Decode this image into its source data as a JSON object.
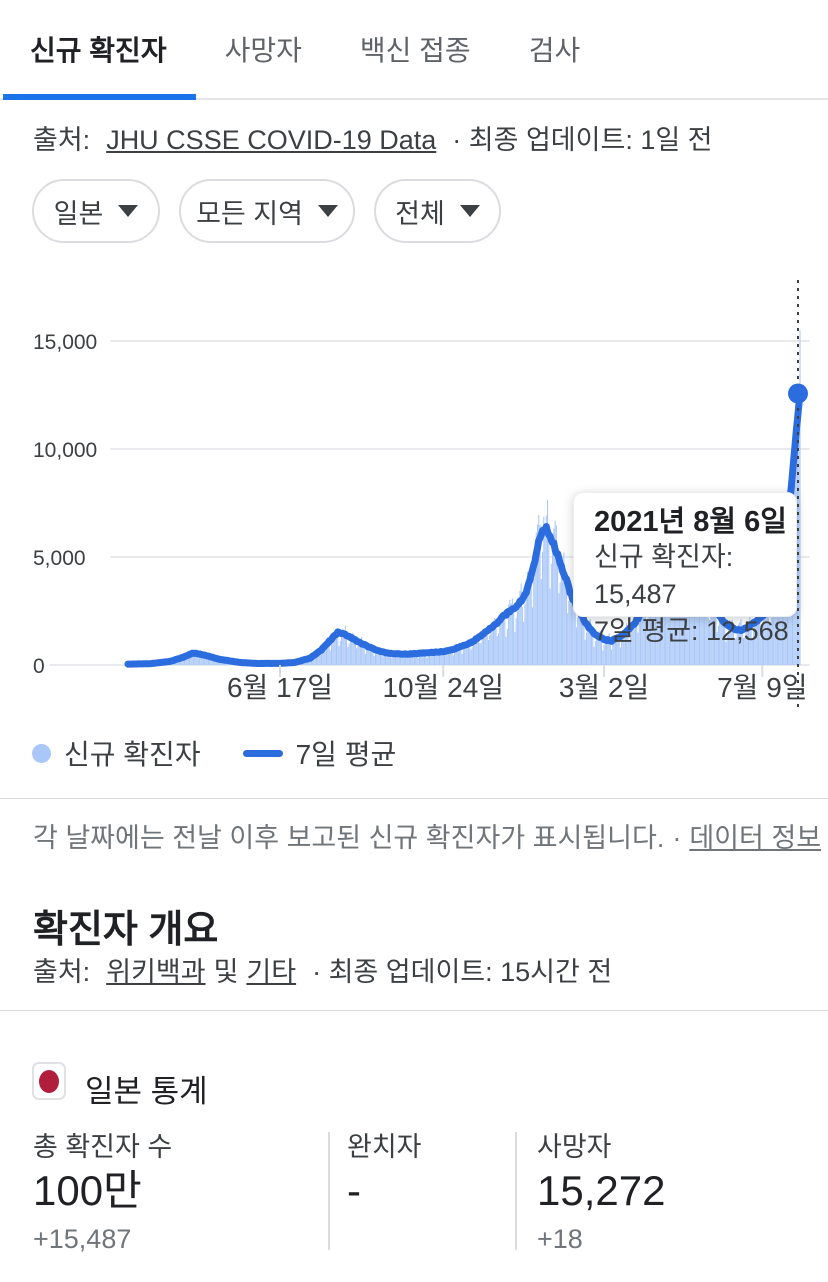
{
  "tabs": {
    "items": [
      {
        "label": "신규 확진자",
        "active": true
      },
      {
        "label": "사망자",
        "active": false
      },
      {
        "label": "백신 접종",
        "active": false
      },
      {
        "label": "검사",
        "active": false
      }
    ]
  },
  "source_line": {
    "prefix": "출처:",
    "link": "JHU CSSE COVID-19 Data",
    "suffix": "· 최종 업데이트: 1일 전"
  },
  "filters": [
    {
      "label": "일본"
    },
    {
      "label": "모든 지역"
    },
    {
      "label": "전체"
    }
  ],
  "chart_data": {
    "type": "area",
    "grid": "horizontal",
    "legend_position": "bottom",
    "x_axis": {
      "days_total": 535,
      "ticks": [
        {
          "day": 121,
          "label": "6월 17일"
        },
        {
          "day": 251,
          "label": "10월 24일"
        },
        {
          "day": 379,
          "label": "3월 2일"
        },
        {
          "day": 505,
          "label": "7월 9일"
        }
      ]
    },
    "y_axis": {
      "range": [
        0,
        17000
      ],
      "ticks": [
        {
          "value": 0,
          "label": "0"
        },
        {
          "value": 5000,
          "label": "5,000"
        },
        {
          "value": 10000,
          "label": "10,000"
        },
        {
          "value": 15000,
          "label": "15,000"
        }
      ]
    },
    "series": [
      {
        "name": "신규 확진자",
        "render": "bars",
        "color": "#a9c7f8",
        "latest": 15487,
        "note": "daily bars derived from 7-day average keypoints with weekly reporting dips and noise"
      },
      {
        "name": "7일 평균",
        "render": "line",
        "color": "#2b6cdf",
        "latest": 12568,
        "keypoints": [
          [
            0,
            40
          ],
          [
            17,
            60
          ],
          [
            33,
            160
          ],
          [
            45,
            380
          ],
          [
            52,
            560
          ],
          [
            61,
            460
          ],
          [
            73,
            260
          ],
          [
            89,
            120
          ],
          [
            103,
            70
          ],
          [
            121,
            75
          ],
          [
            133,
            120
          ],
          [
            145,
            320
          ],
          [
            154,
            700
          ],
          [
            161,
            1150
          ],
          [
            167,
            1500
          ],
          [
            173,
            1400
          ],
          [
            181,
            1150
          ],
          [
            191,
            850
          ],
          [
            201,
            620
          ],
          [
            210,
            530
          ],
          [
            220,
            500
          ],
          [
            232,
            540
          ],
          [
            251,
            620
          ],
          [
            260,
            750
          ],
          [
            271,
            980
          ],
          [
            280,
            1300
          ],
          [
            290,
            1750
          ],
          [
            298,
            2200
          ],
          [
            306,
            2600
          ],
          [
            310,
            2750
          ],
          [
            315,
            3100
          ],
          [
            320,
            3900
          ],
          [
            324,
            4900
          ],
          [
            328,
            5900
          ],
          [
            331,
            6400
          ],
          [
            334,
            6300
          ],
          [
            337,
            5900
          ],
          [
            342,
            5100
          ],
          [
            348,
            4100
          ],
          [
            353,
            3200
          ],
          [
            360,
            2400
          ],
          [
            366,
            1800
          ],
          [
            372,
            1400
          ],
          [
            379,
            1180
          ],
          [
            385,
            1120
          ],
          [
            392,
            1300
          ],
          [
            400,
            1700
          ],
          [
            408,
            2300
          ],
          [
            417,
            3400
          ],
          [
            425,
            4600
          ],
          [
            431,
            5600
          ],
          [
            437,
            6050
          ],
          [
            442,
            5700
          ],
          [
            449,
            4800
          ],
          [
            457,
            3700
          ],
          [
            465,
            2800
          ],
          [
            473,
            2100
          ],
          [
            479,
            1750
          ],
          [
            486,
            1600
          ],
          [
            492,
            1700
          ],
          [
            498,
            1950
          ],
          [
            505,
            2250
          ],
          [
            511,
            2800
          ],
          [
            517,
            3900
          ],
          [
            523,
            5800
          ],
          [
            528,
            8200
          ],
          [
            532,
            10800
          ],
          [
            535,
            12568
          ]
        ]
      }
    ],
    "highlight": {
      "day": 535,
      "date": "2021년 8월 6일",
      "new_cases": 15487,
      "avg_7day": 12568
    }
  },
  "tooltip": {
    "title": "2021년 8월 6일",
    "line1": "신규 확진자: 15,487",
    "line2": "7일 평균: 12,568"
  },
  "legend": {
    "items": [
      {
        "label": "신규 확진자"
      },
      {
        "label": "7일 평균"
      }
    ]
  },
  "note": {
    "text": "각 날짜에는 전날 이후 보고된 신규 확진자가 표시됩니다.",
    "separator": "·",
    "link": "데이터 정보"
  },
  "overview": {
    "heading": "확진자 개요",
    "source_prefix": "출처:",
    "source_link1": "위키백과",
    "source_mid": "및",
    "source_link2": "기타",
    "source_suffix": "· 최종 업데이트: 15시간 전"
  },
  "stats": {
    "title": "일본 통계",
    "flag": {
      "name": "japan-flag",
      "circle_color": "#b01e3c"
    },
    "columns": [
      {
        "label": "총 확진자 수",
        "value": "100만",
        "delta": "+15,487"
      },
      {
        "label": "완치자",
        "value": "-",
        "delta": ""
      },
      {
        "label": "사망자",
        "value": "15,272",
        "delta": "+18"
      }
    ]
  },
  "colors": {
    "accent": "#1a73e8",
    "line_blue": "#2b6cdf",
    "bar_blue": "#a9c7f8",
    "grid": "#e8eaed",
    "divider": "#dadce0",
    "text_primary": "#202124",
    "text_secondary": "#3c4043",
    "text_muted": "#70757a"
  }
}
